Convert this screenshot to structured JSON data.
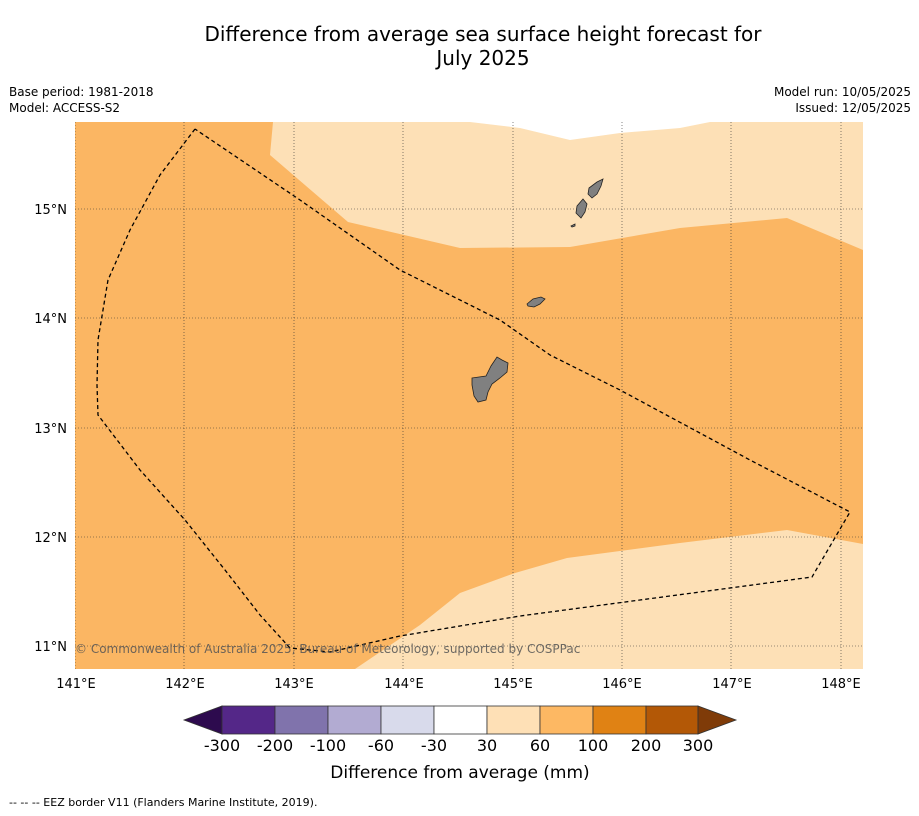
{
  "title_line1": "Difference from average sea surface height forecast for",
  "title_line2": "July 2025",
  "base_period": "Base period: 1981-2018",
  "model": "Model: ACCESS-S2",
  "model_run": "Model run: 10/05/2025",
  "issued": "Issued: 12/05/2025",
  "copyright": "© Commonwealth of Australia 2025, Bureau of Meteorology, supported by COSPPac",
  "footer_note": "--  --  -- EEZ border V11 (Flanders Marine Institute, 2019).",
  "map": {
    "lon_labels": [
      "141°E",
      "142°E",
      "143°E",
      "144°E",
      "145°E",
      "146°E",
      "147°E",
      "148°E"
    ],
    "lat_labels": [
      "11°N",
      "12°N",
      "13°N",
      "14°N",
      "15°N"
    ]
  },
  "colorbar": {
    "label": "Difference from average (mm)",
    "tick_labels": [
      "-300",
      "-200",
      "-100",
      "-60",
      "-30",
      "30",
      "60",
      "100",
      "200",
      "300"
    ],
    "colors": [
      "#2d0a4e",
      "#542788",
      "#8073ac",
      "#b2abd2",
      "#d8daeb",
      "#ffffff",
      "#fee0b6",
      "#fdb863",
      "#e08214",
      "#b35806",
      "#7f3b08"
    ]
  },
  "fill_colors": {
    "band_30_60": "#fde0b6",
    "band_60_100": "#fbb663",
    "land": "#808080"
  }
}
